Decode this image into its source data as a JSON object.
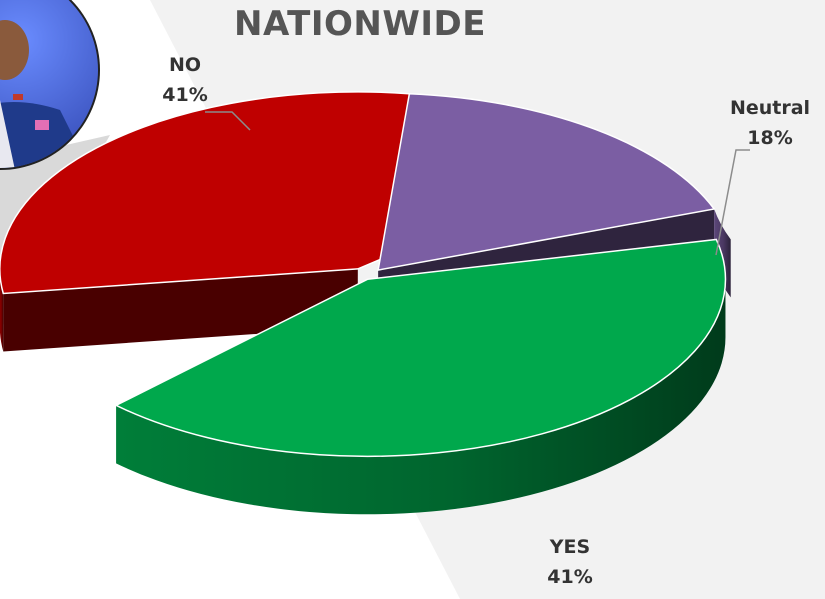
{
  "chart_data": {
    "type": "pie",
    "title": "NATIONWIDE",
    "categories": [
      "YES",
      "NO",
      "Neutral"
    ],
    "values": [
      41,
      41,
      18
    ],
    "value_labels": [
      "41%",
      "41%",
      "18%"
    ],
    "colors": [
      "#00a84c",
      "#bf0000",
      "#7b5ea3"
    ],
    "style": "3d-exploded",
    "legend": "none"
  },
  "photo": {
    "icon": "person-portrait-icon"
  }
}
